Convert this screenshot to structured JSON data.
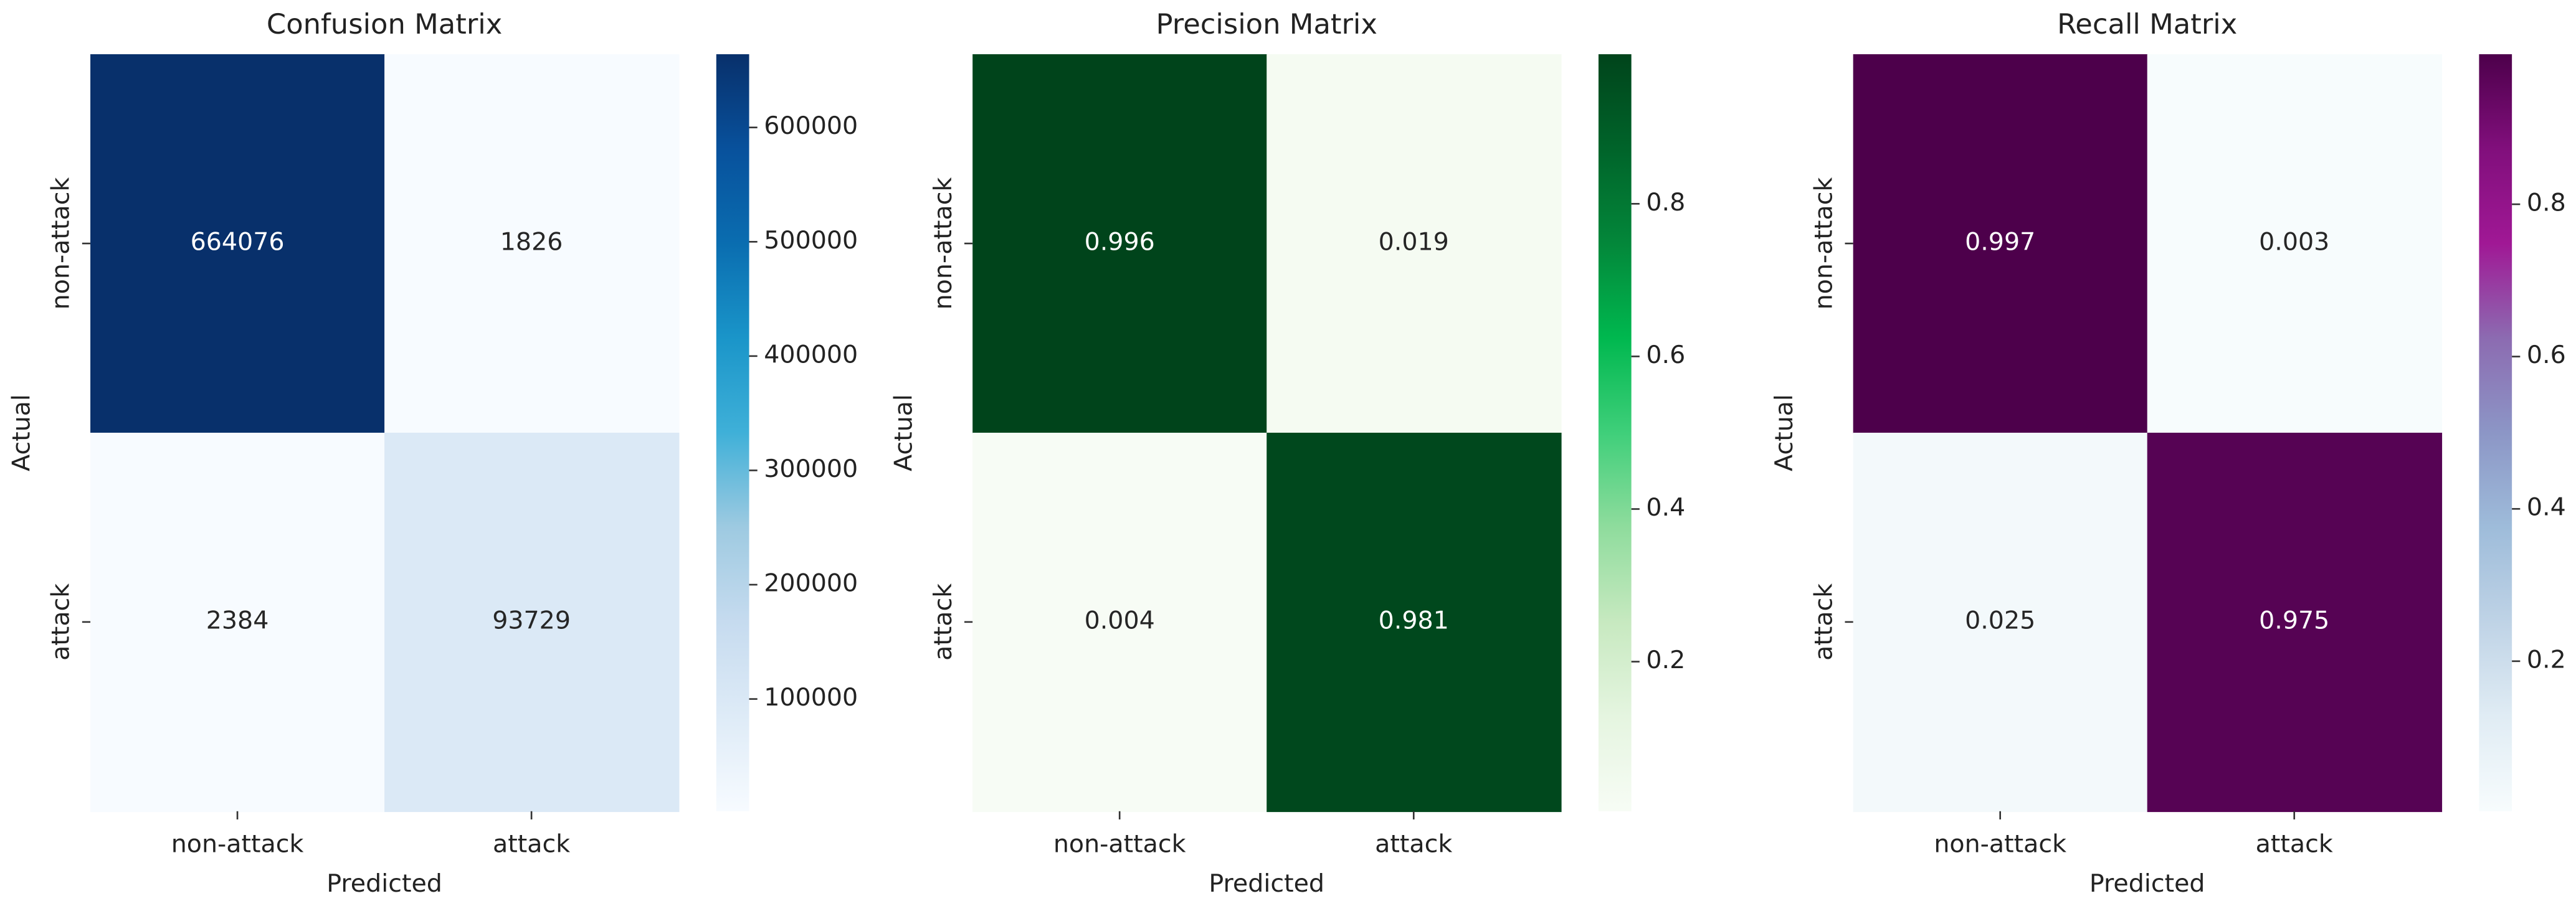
{
  "chart_data": [
    {
      "type": "heatmap",
      "title": "Confusion Matrix",
      "xlabel": "Predicted",
      "ylabel": "Actual",
      "x_categories": [
        "non-attack",
        "attack"
      ],
      "y_categories": [
        "non-attack",
        "attack"
      ],
      "values": [
        [
          664076,
          1826
        ],
        [
          2384,
          93729
        ]
      ],
      "clim": [
        1826,
        664076
      ],
      "cticks": [
        100000,
        200000,
        300000,
        400000,
        500000,
        600000
      ],
      "colormap": [
        "#f7fbff",
        "#deebf7",
        "#c6dbef",
        "#9ecae1",
        "#3fb0d8",
        "#1a95c9",
        "#0a6db0",
        "#08519c",
        "#08306b"
      ]
    },
    {
      "type": "heatmap",
      "title": "Precision Matrix",
      "xlabel": "Predicted",
      "ylabel": "Actual",
      "x_categories": [
        "non-attack",
        "attack"
      ],
      "y_categories": [
        "non-attack",
        "attack"
      ],
      "values": [
        [
          0.996,
          0.019
        ],
        [
          0.004,
          0.981
        ]
      ],
      "clim": [
        0.004,
        0.996
      ],
      "cticks": [
        0.2,
        0.4,
        0.6,
        0.8
      ],
      "colormap": [
        "#f7fcf5",
        "#e5f5e0",
        "#c7e9c0",
        "#8fdc9d",
        "#3fcf7a",
        "#00b84f",
        "#03873a",
        "#00642a",
        "#00441b"
      ]
    },
    {
      "type": "heatmap",
      "title": "Recall Matrix",
      "xlabel": "Predicted",
      "ylabel": "Actual",
      "x_categories": [
        "non-attack",
        "attack"
      ],
      "y_categories": [
        "non-attack",
        "attack"
      ],
      "values": [
        [
          0.997,
          0.003
        ],
        [
          0.025,
          0.975
        ]
      ],
      "clim": [
        0.003,
        0.997
      ],
      "cticks": [
        0.2,
        0.4,
        0.6,
        0.8
      ],
      "colormap": [
        "#f7fcfd",
        "#e0ecf4",
        "#bfd3e6",
        "#9ebcda",
        "#8c96c6",
        "#8c6bb1",
        "#a01895",
        "#810f7c",
        "#4d004b"
      ]
    }
  ]
}
